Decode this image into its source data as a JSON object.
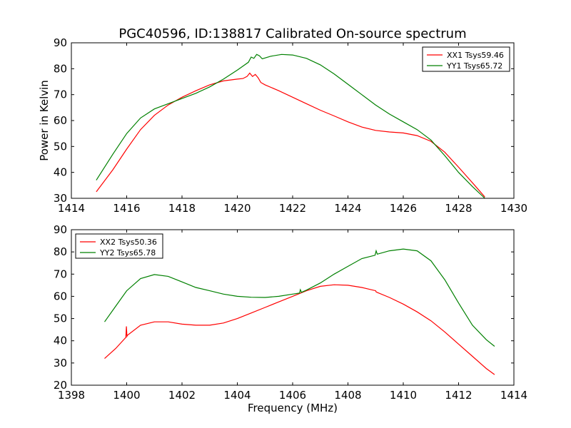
{
  "chart_data": [
    {
      "type": "line",
      "title": "PGC40596, ID:138817 Calibrated On-source spectrum",
      "xlabel": "",
      "ylabel": "Power in Kelvin",
      "xlim": [
        1414,
        1430
      ],
      "ylim": [
        30,
        90
      ],
      "xticks": [
        "1414",
        "1416",
        "1418",
        "1420",
        "1422",
        "1424",
        "1426",
        "1428",
        "1430"
      ],
      "yticks": [
        "30",
        "40",
        "50",
        "60",
        "70",
        "80",
        "90"
      ],
      "grid": false,
      "legend_position": "top-right",
      "series": [
        {
          "name": "XX1 Tsys59.46",
          "color": "#ff0000",
          "x": [
            1414.9,
            1415.5,
            1416.0,
            1416.5,
            1417.0,
            1417.5,
            1418.0,
            1418.5,
            1419.0,
            1419.5,
            1420.0,
            1420.2,
            1420.35,
            1420.45,
            1420.55,
            1420.65,
            1420.75,
            1420.85,
            1421.0,
            1421.5,
            1422.0,
            1422.5,
            1423.0,
            1423.5,
            1424.0,
            1424.5,
            1425.0,
            1425.5,
            1426.0,
            1426.5,
            1427.0,
            1427.5,
            1428.0,
            1428.5,
            1428.95
          ],
          "values": [
            32.5,
            41.0,
            49.0,
            56.5,
            62.0,
            66.0,
            69.0,
            71.5,
            73.8,
            75.3,
            76.0,
            76.2,
            77.0,
            78.3,
            77.0,
            77.8,
            76.5,
            74.7,
            73.8,
            71.5,
            69.0,
            66.5,
            64.0,
            61.8,
            59.5,
            57.5,
            56.2,
            55.6,
            55.2,
            54.2,
            52.0,
            47.8,
            42.0,
            36.0,
            30.5
          ]
        },
        {
          "name": "YY1 Tsys65.72",
          "color": "#008000",
          "x": [
            1414.9,
            1415.5,
            1416.0,
            1416.5,
            1417.0,
            1417.5,
            1418.0,
            1418.5,
            1419.0,
            1419.5,
            1420.0,
            1420.2,
            1420.4,
            1420.5,
            1420.6,
            1420.7,
            1420.8,
            1420.9,
            1421.2,
            1421.6,
            1422.0,
            1422.5,
            1423.0,
            1423.5,
            1424.0,
            1424.5,
            1425.0,
            1425.5,
            1426.0,
            1426.5,
            1427.0,
            1427.5,
            1428.0,
            1428.5,
            1428.95
          ],
          "values": [
            37.0,
            47.0,
            55.0,
            61.0,
            64.5,
            66.5,
            68.5,
            70.5,
            73.0,
            76.0,
            79.5,
            81.0,
            82.5,
            84.5,
            84.0,
            85.5,
            85.0,
            83.8,
            84.8,
            85.5,
            85.3,
            84.0,
            81.5,
            78.0,
            74.0,
            70.0,
            66.0,
            62.5,
            59.5,
            56.5,
            52.5,
            46.5,
            40.0,
            34.5,
            30.0
          ]
        }
      ]
    },
    {
      "type": "line",
      "title": "",
      "xlabel": "Frequency (MHz)",
      "ylabel": "",
      "xlim": [
        1398,
        1414
      ],
      "ylim": [
        20,
        90
      ],
      "xticks": [
        "1398",
        "1400",
        "1402",
        "1404",
        "1406",
        "1408",
        "1410",
        "1412",
        "1414"
      ],
      "yticks": [
        "20",
        "30",
        "40",
        "50",
        "60",
        "70",
        "80",
        "90"
      ],
      "grid": false,
      "legend_position": "top-left",
      "series": [
        {
          "name": "XX2 Tsys50.36",
          "color": "#ff0000",
          "x": [
            1399.2,
            1399.6,
            1399.97,
            1399.99,
            1400.01,
            1400.03,
            1400.5,
            1401.0,
            1401.5,
            1402.0,
            1402.5,
            1403.0,
            1403.5,
            1404.0,
            1404.5,
            1405.0,
            1405.5,
            1406.0,
            1406.5,
            1407.0,
            1407.5,
            1408.0,
            1408.5,
            1409.0,
            1409.02,
            1409.05,
            1409.5,
            1410.0,
            1410.5,
            1411.0,
            1411.5,
            1412.0,
            1412.5,
            1413.0,
            1413.3
          ],
          "values": [
            32.0,
            36.5,
            41.5,
            46.5,
            42.0,
            42.5,
            47.0,
            48.5,
            48.5,
            47.5,
            47.0,
            47.0,
            48.0,
            50.0,
            52.5,
            55.0,
            57.5,
            60.0,
            62.5,
            64.5,
            65.2,
            65.0,
            64.0,
            62.5,
            62.0,
            61.8,
            59.5,
            56.5,
            53.0,
            49.0,
            44.0,
            38.5,
            33.0,
            27.5,
            24.8
          ]
        },
        {
          "name": "YY2 Tsys65.78",
          "color": "#008000",
          "x": [
            1399.2,
            1399.6,
            1400.0,
            1400.5,
            1401.0,
            1401.5,
            1402.0,
            1402.5,
            1403.0,
            1403.5,
            1404.0,
            1404.5,
            1405.0,
            1405.5,
            1406.0,
            1406.25,
            1406.28,
            1406.32,
            1406.5,
            1407.0,
            1407.5,
            1408.0,
            1408.5,
            1408.98,
            1409.02,
            1409.06,
            1409.5,
            1410.0,
            1410.5,
            1411.0,
            1411.5,
            1412.0,
            1412.5,
            1413.0,
            1413.3
          ],
          "values": [
            48.5,
            55.5,
            62.5,
            68.0,
            69.8,
            69.0,
            66.5,
            64.0,
            62.5,
            61.0,
            60.0,
            59.6,
            59.5,
            60.0,
            61.0,
            61.5,
            63.0,
            61.8,
            62.8,
            66.0,
            70.0,
            73.5,
            77.0,
            78.5,
            80.5,
            79.0,
            80.5,
            81.3,
            80.5,
            76.0,
            67.5,
            57.0,
            47.0,
            40.5,
            37.5
          ]
        }
      ]
    }
  ]
}
